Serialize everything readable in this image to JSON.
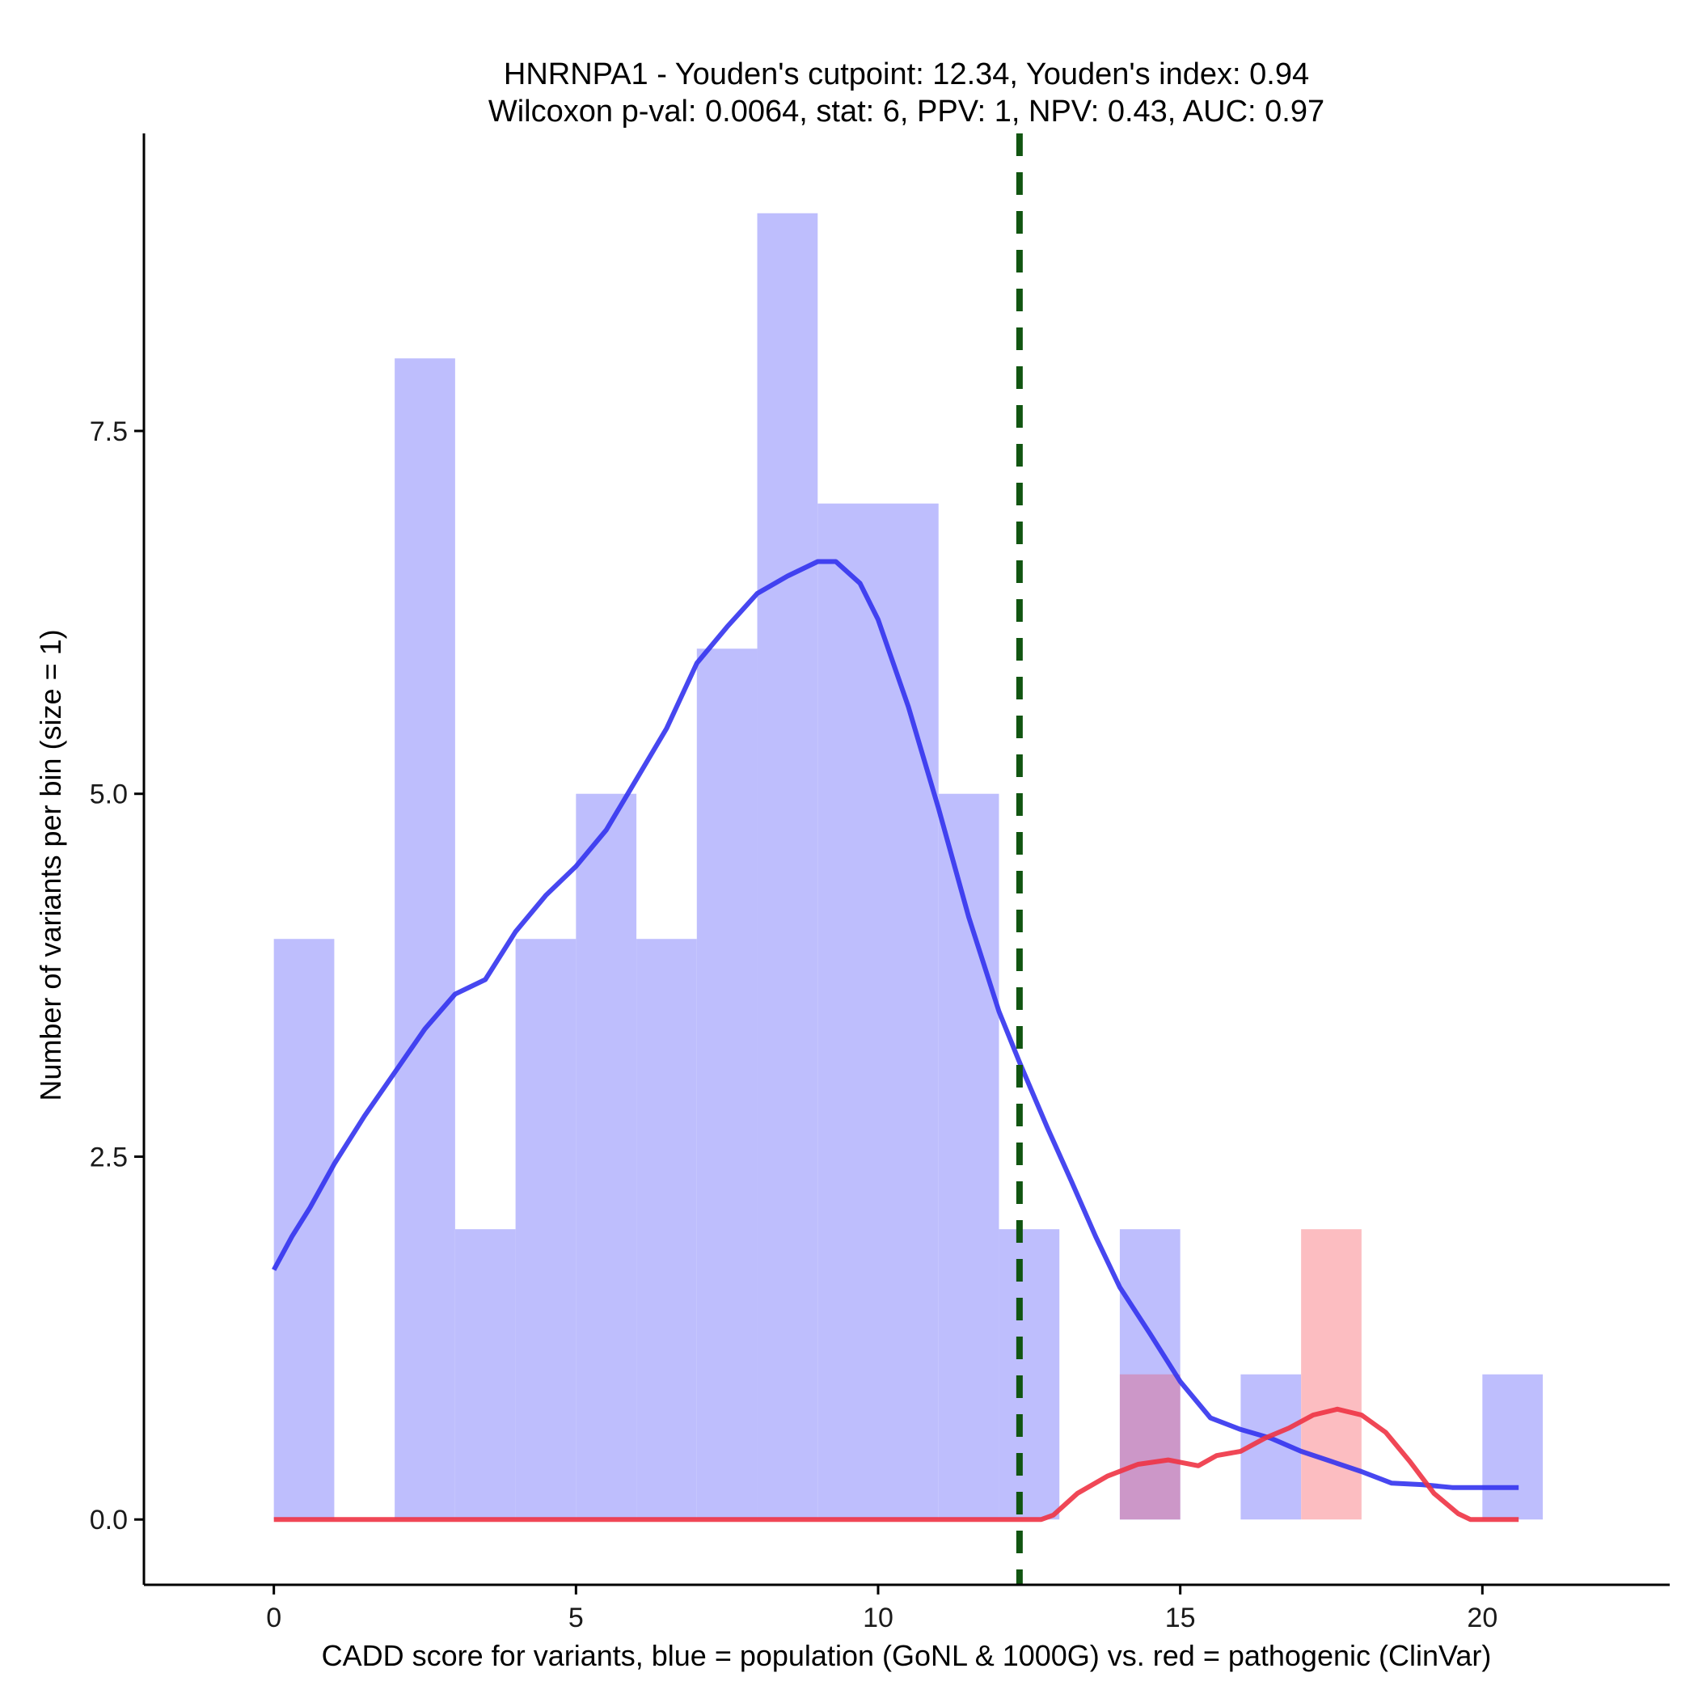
{
  "chart_data": {
    "type": "bar",
    "title_line1": "HNRNPA1 - Youden's cutpoint: 12.34, Youden's index: 0.94",
    "title_line2": "Wilcoxon p-val: 0.0064, stat: 6, PPV: 1, NPV: 0.43, AUC: 0.97",
    "xlabel": "CADD score for variants, blue = population (GoNL & 1000G) vs. red = pathogenic (ClinVar)",
    "ylabel": "Number of variants per bin (size = 1)",
    "xlim": [
      -2.15,
      23.1
    ],
    "ylim": [
      -0.45,
      9.55
    ],
    "x_ticks": [
      0,
      5,
      10,
      15,
      20
    ],
    "y_ticks": [
      0.0,
      2.5,
      5.0,
      7.5
    ],
    "y_tick_labels": [
      "0.0",
      "2.5",
      "5.0",
      "7.5"
    ],
    "bin_width": 1,
    "cutpoint": 12.34,
    "colors": {
      "population_bar": "#bebefd",
      "pathogenic_bar": "#fcbdc1",
      "overlap_bar": "#cc97c8",
      "population_line": "#3333ee",
      "pathogenic_line": "#ee3344",
      "cutpoint_line": "#115511"
    },
    "series": [
      {
        "key": "population",
        "bins": [
          {
            "start": 0,
            "count": 4
          },
          {
            "start": 2,
            "count": 8
          },
          {
            "start": 3,
            "count": 2
          },
          {
            "start": 4,
            "count": 4
          },
          {
            "start": 5,
            "count": 5
          },
          {
            "start": 6,
            "count": 4
          },
          {
            "start": 7,
            "count": 6
          },
          {
            "start": 8,
            "count": 9
          },
          {
            "start": 9,
            "count": 7
          },
          {
            "start": 10,
            "count": 7
          },
          {
            "start": 11,
            "count": 5
          },
          {
            "start": 12,
            "count": 2
          },
          {
            "start": 14,
            "count": 2
          },
          {
            "start": 16,
            "count": 1
          },
          {
            "start": 20,
            "count": 1
          }
        ],
        "density_curve": [
          [
            0,
            1.72
          ],
          [
            0.3,
            1.95
          ],
          [
            0.6,
            2.15
          ],
          [
            1.0,
            2.45
          ],
          [
            1.5,
            2.78
          ],
          [
            2.0,
            3.08
          ],
          [
            2.5,
            3.38
          ],
          [
            3.0,
            3.62
          ],
          [
            3.5,
            3.72
          ],
          [
            4.0,
            4.05
          ],
          [
            4.5,
            4.3
          ],
          [
            5.0,
            4.5
          ],
          [
            5.5,
            4.75
          ],
          [
            6.0,
            5.1
          ],
          [
            6.5,
            5.45
          ],
          [
            7.0,
            5.9
          ],
          [
            7.5,
            6.15
          ],
          [
            8.0,
            6.38
          ],
          [
            8.5,
            6.5
          ],
          [
            9.0,
            6.6
          ],
          [
            9.3,
            6.6
          ],
          [
            9.7,
            6.45
          ],
          [
            10.0,
            6.2
          ],
          [
            10.5,
            5.6
          ],
          [
            11.0,
            4.9
          ],
          [
            11.5,
            4.15
          ],
          [
            12.0,
            3.5
          ],
          [
            12.34,
            3.15
          ],
          [
            12.8,
            2.7
          ],
          [
            13.2,
            2.33
          ],
          [
            13.6,
            1.95
          ],
          [
            14.0,
            1.6
          ],
          [
            14.5,
            1.28
          ],
          [
            15.0,
            0.95
          ],
          [
            15.5,
            0.7
          ],
          [
            16.0,
            0.62
          ],
          [
            16.5,
            0.56
          ],
          [
            17.0,
            0.47
          ],
          [
            17.5,
            0.4
          ],
          [
            18.0,
            0.33
          ],
          [
            18.5,
            0.25
          ],
          [
            19.0,
            0.24
          ],
          [
            19.5,
            0.22
          ],
          [
            20.0,
            0.22
          ],
          [
            20.6,
            0.22
          ]
        ]
      },
      {
        "key": "pathogenic",
        "bins": [
          {
            "start": 14,
            "count": 1
          },
          {
            "start": 17,
            "count": 2
          }
        ],
        "density_curve": [
          [
            0,
            0
          ],
          [
            12.7,
            0
          ],
          [
            12.9,
            0.03
          ],
          [
            13.3,
            0.18
          ],
          [
            13.8,
            0.3
          ],
          [
            14.3,
            0.38
          ],
          [
            14.8,
            0.41
          ],
          [
            15.3,
            0.37
          ],
          [
            15.6,
            0.44
          ],
          [
            16.0,
            0.47
          ],
          [
            16.4,
            0.56
          ],
          [
            16.8,
            0.63
          ],
          [
            17.2,
            0.72
          ],
          [
            17.6,
            0.76
          ],
          [
            18.0,
            0.72
          ],
          [
            18.4,
            0.6
          ],
          [
            18.8,
            0.4
          ],
          [
            19.2,
            0.18
          ],
          [
            19.6,
            0.04
          ],
          [
            19.8,
            0
          ],
          [
            20.6,
            0
          ]
        ]
      }
    ]
  }
}
